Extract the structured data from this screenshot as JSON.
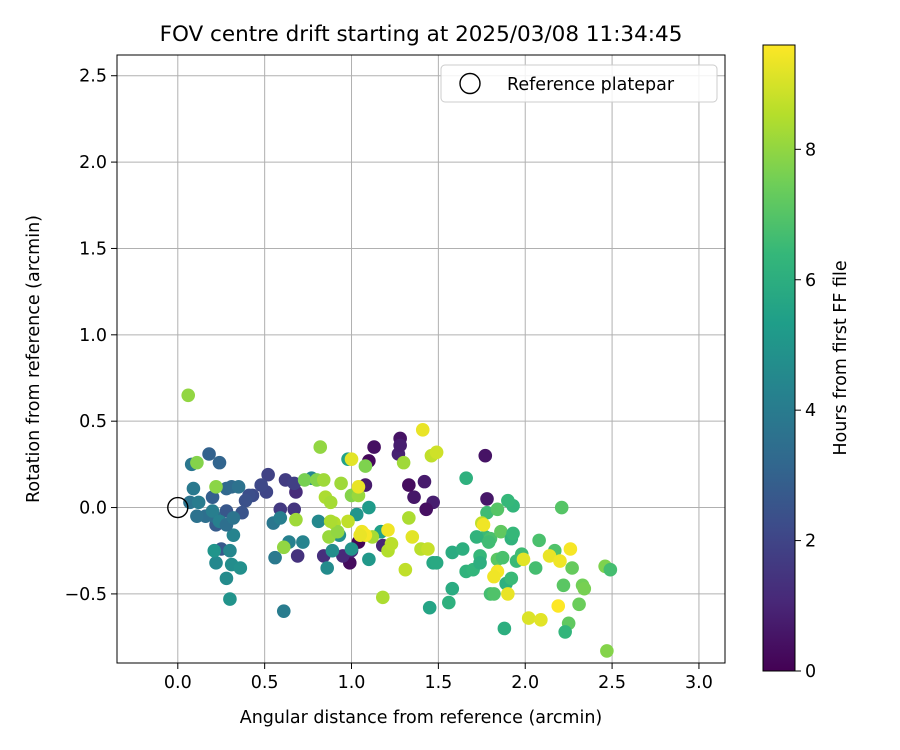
{
  "chart_data": {
    "type": "scatter",
    "title": "FOV centre drift starting at 2025/03/08 11:34:45",
    "xlabel": "Angular distance from reference (arcmin)",
    "ylabel": "Rotation from reference (arcmin)",
    "xlim": [
      -0.35,
      3.15
    ],
    "ylim": [
      -0.9,
      2.62
    ],
    "xticks": [
      0.0,
      0.5,
      1.0,
      1.5,
      2.0,
      2.5,
      3.0
    ],
    "xtick_labels": [
      "0.0",
      "0.5",
      "1.0",
      "1.5",
      "2.0",
      "2.5",
      "3.0"
    ],
    "yticks": [
      -0.5,
      0.0,
      0.5,
      1.0,
      1.5,
      2.0,
      2.5
    ],
    "ytick_labels": [
      "−0.5",
      "0.0",
      "0.5",
      "1.0",
      "1.5",
      "2.0",
      "2.5"
    ],
    "grid": true,
    "legend": {
      "placement": "upper right",
      "label": "Reference platepar"
    },
    "reference_point": [
      0,
      0
    ],
    "colorbar": {
      "label": "Hours from first FF file",
      "colormap": "viridis",
      "range": [
        0,
        9.6
      ],
      "ticks": [
        0,
        2,
        4,
        6,
        8
      ],
      "tick_labels": [
        "0",
        "2",
        "4",
        "6",
        "8"
      ]
    },
    "color_by": "hours",
    "points": [
      [
        1.04,
        -0.2,
        0.1
      ],
      [
        1.1,
        0.27,
        0.2
      ],
      [
        0.99,
        -0.32,
        0.3
      ],
      [
        1.13,
        0.35,
        0.4
      ],
      [
        1.28,
        0.4,
        0.5
      ],
      [
        1.36,
        0.06,
        0.6
      ],
      [
        1.42,
        0.15,
        0.7
      ],
      [
        1.47,
        0.03,
        0.8
      ],
      [
        1.27,
        0.31,
        0.9
      ],
      [
        1.18,
        -0.22,
        1.0
      ],
      [
        1.33,
        0.13,
        0.3
      ],
      [
        1.43,
        -0.01,
        0.4
      ],
      [
        1.77,
        0.3,
        0.5
      ],
      [
        1.78,
        0.05,
        0.6
      ],
      [
        1.08,
        0.13,
        0.7
      ],
      [
        1.28,
        0.36,
        0.8
      ],
      [
        1.0,
        -0.25,
        1.0
      ],
      [
        0.95,
        -0.28,
        1.1
      ],
      [
        0.68,
        0.09,
        1.2
      ],
      [
        0.84,
        -0.28,
        1.3
      ],
      [
        0.69,
        -0.28,
        1.4
      ],
      [
        0.67,
        -0.01,
        1.5
      ],
      [
        0.59,
        -0.01,
        1.6
      ],
      [
        0.62,
        0.16,
        1.7
      ],
      [
        0.67,
        0.14,
        1.8
      ],
      [
        0.52,
        0.19,
        1.9
      ],
      [
        0.51,
        0.09,
        2.0
      ],
      [
        0.48,
        0.13,
        2.1
      ],
      [
        0.43,
        0.07,
        2.2
      ],
      [
        0.41,
        0.07,
        2.3
      ],
      [
        0.39,
        0.04,
        2.4
      ],
      [
        0.37,
        -0.03,
        2.5
      ],
      [
        0.28,
        -0.02,
        2.6
      ],
      [
        0.25,
        -0.24,
        2.7
      ],
      [
        0.22,
        -0.1,
        2.8
      ],
      [
        0.2,
        0.06,
        2.9
      ],
      [
        0.18,
        0.31,
        3.0
      ],
      [
        0.24,
        0.26,
        3.1
      ],
      [
        0.28,
        0.11,
        3.2
      ],
      [
        0.31,
        0.12,
        3.3
      ],
      [
        0.21,
        -0.05,
        3.4
      ],
      [
        0.16,
        -0.05,
        3.5
      ],
      [
        0.11,
        -0.05,
        3.6
      ],
      [
        0.07,
        0.03,
        3.7
      ],
      [
        0.08,
        0.25,
        3.8
      ],
      [
        0.09,
        0.11,
        3.9
      ],
      [
        0.12,
        0.03,
        4.0
      ],
      [
        0.2,
        -0.02,
        4.1
      ],
      [
        0.24,
        -0.08,
        4.2
      ],
      [
        0.32,
        -0.16,
        4.3
      ],
      [
        0.3,
        -0.25,
        4.4
      ],
      [
        0.22,
        -0.32,
        4.5
      ],
      [
        0.28,
        -0.41,
        4.6
      ],
      [
        0.31,
        -0.33,
        4.7
      ],
      [
        0.36,
        -0.35,
        4.8
      ],
      [
        0.3,
        -0.53,
        4.9
      ],
      [
        0.21,
        -0.25,
        5.0
      ],
      [
        0.28,
        -0.1,
        3.5
      ],
      [
        0.35,
        0.12,
        3.6
      ],
      [
        0.32,
        -0.06,
        3.7
      ],
      [
        0.55,
        -0.09,
        3.8
      ],
      [
        0.56,
        -0.29,
        3.9
      ],
      [
        0.61,
        -0.6,
        4.0
      ],
      [
        0.59,
        -0.06,
        4.1
      ],
      [
        0.64,
        -0.2,
        4.2
      ],
      [
        0.72,
        -0.2,
        4.3
      ],
      [
        0.77,
        0.17,
        4.4
      ],
      [
        0.81,
        -0.08,
        4.5
      ],
      [
        0.86,
        -0.35,
        4.6
      ],
      [
        0.89,
        -0.25,
        4.7
      ],
      [
        0.93,
        -0.16,
        4.8
      ],
      [
        1.0,
        -0.24,
        4.9
      ],
      [
        1.03,
        -0.04,
        5.0
      ],
      [
        1.1,
        -0.3,
        5.1
      ],
      [
        1.1,
        0.0,
        5.2
      ],
      [
        1.17,
        -0.14,
        5.3
      ],
      [
        1.17,
        -0.14,
        5.4
      ],
      [
        0.98,
        0.28,
        5.5
      ],
      [
        1.45,
        -0.58,
        5.6
      ],
      [
        1.47,
        -0.32,
        5.7
      ],
      [
        1.49,
        -0.32,
        5.8
      ],
      [
        1.58,
        -0.26,
        5.9
      ],
      [
        1.64,
        -0.24,
        6.0
      ],
      [
        1.66,
        0.17,
        6.1
      ],
      [
        1.66,
        -0.37,
        6.2
      ],
      [
        1.7,
        -0.36,
        6.3
      ],
      [
        1.74,
        -0.28,
        6.4
      ],
      [
        1.77,
        -0.17,
        6.5
      ],
      [
        1.78,
        -0.03,
        6.6
      ],
      [
        1.8,
        -0.5,
        6.7
      ],
      [
        1.8,
        -0.18,
        6.8
      ],
      [
        1.82,
        -0.5,
        6.9
      ],
      [
        1.84,
        -0.01,
        7.0
      ],
      [
        1.84,
        -0.3,
        7.1
      ],
      [
        1.86,
        -0.14,
        7.2
      ],
      [
        1.88,
        -0.7,
        6.0
      ],
      [
        1.89,
        -0.44,
        6.1
      ],
      [
        1.92,
        -0.18,
        6.2
      ],
      [
        1.93,
        0.01,
        6.3
      ],
      [
        1.93,
        -0.15,
        6.4
      ],
      [
        1.95,
        -0.31,
        6.5
      ],
      [
        1.98,
        -0.27,
        6.6
      ],
      [
        2.06,
        -0.35,
        6.7
      ],
      [
        2.08,
        -0.19,
        6.8
      ],
      [
        2.17,
        -0.25,
        6.9
      ],
      [
        2.21,
        0.0,
        7.0
      ],
      [
        2.22,
        -0.45,
        7.1
      ],
      [
        2.25,
        -0.67,
        7.2
      ],
      [
        2.27,
        -0.35,
        7.3
      ],
      [
        2.31,
        -0.56,
        7.4
      ],
      [
        2.33,
        -0.45,
        7.5
      ],
      [
        2.34,
        -0.47,
        7.6
      ],
      [
        2.46,
        -0.34,
        7.7
      ],
      [
        2.47,
        -0.83,
        7.8
      ],
      [
        1.58,
        -0.47,
        5.9
      ],
      [
        1.74,
        -0.32,
        6.0
      ],
      [
        1.56,
        -0.55,
        6.1
      ],
      [
        1.72,
        -0.17,
        6.2
      ],
      [
        2.23,
        -0.72,
        6.3
      ],
      [
        1.9,
        0.04,
        6.4
      ],
      [
        1.92,
        -0.41,
        6.5
      ],
      [
        1.79,
        -0.2,
        6.6
      ],
      [
        2.49,
        -0.36,
        6.7
      ],
      [
        1.87,
        -0.29,
        6.8
      ],
      [
        0.73,
        0.16,
        7.6
      ],
      [
        0.8,
        0.16,
        7.8
      ],
      [
        0.82,
        0.35,
        8.0
      ],
      [
        0.84,
        0.16,
        8.2
      ],
      [
        0.85,
        0.06,
        8.4
      ],
      [
        0.87,
        -0.17,
        8.1
      ],
      [
        0.88,
        0.03,
        8.3
      ],
      [
        0.9,
        -0.09,
        8.5
      ],
      [
        0.92,
        -0.14,
        8.0
      ],
      [
        0.94,
        0.14,
        8.2
      ],
      [
        1.0,
        0.07,
        7.8
      ],
      [
        1.04,
        0.07,
        8.1
      ],
      [
        1.08,
        0.24,
        7.7
      ],
      [
        1.12,
        -0.17,
        8.3
      ],
      [
        1.18,
        -0.52,
        8.4
      ],
      [
        1.21,
        -0.25,
        8.5
      ],
      [
        1.23,
        -0.21,
        8.6
      ],
      [
        1.31,
        -0.36,
        8.7
      ],
      [
        1.3,
        0.26,
        8.2
      ],
      [
        1.33,
        -0.06,
        8.4
      ],
      [
        1.4,
        -0.24,
        8.6
      ],
      [
        1.44,
        -0.24,
        8.8
      ],
      [
        1.46,
        0.3,
        8.7
      ],
      [
        1.49,
        0.32,
        8.9
      ],
      [
        1.75,
        -0.09,
        8.7
      ],
      [
        0.06,
        0.65,
        8.0
      ],
      [
        0.11,
        0.26,
        7.8
      ],
      [
        0.22,
        0.12,
        7.9
      ],
      [
        0.61,
        -0.23,
        8.0
      ],
      [
        0.68,
        -0.07,
        8.2
      ],
      [
        0.88,
        -0.08,
        8.4
      ],
      [
        0.98,
        -0.08,
        8.7
      ],
      [
        1.0,
        0.28,
        9.2
      ],
      [
        1.04,
        0.12,
        9.3
      ],
      [
        1.06,
        -0.14,
        9.4
      ],
      [
        1.08,
        -0.16,
        9.5
      ],
      [
        1.21,
        -0.13,
        9.4
      ],
      [
        1.05,
        -0.16,
        9.3
      ],
      [
        1.35,
        -0.17,
        9.2
      ],
      [
        1.41,
        0.45,
        9.3
      ],
      [
        1.76,
        -0.1,
        9.4
      ],
      [
        1.84,
        -0.37,
        9.5
      ],
      [
        1.82,
        -0.4,
        9.4
      ],
      [
        1.9,
        -0.5,
        9.3
      ],
      [
        1.99,
        -0.3,
        9.2
      ],
      [
        2.02,
        -0.64,
        9.1
      ],
      [
        2.09,
        -0.65,
        9.2
      ],
      [
        2.14,
        -0.28,
        9.3
      ],
      [
        2.2,
        -0.31,
        9.4
      ],
      [
        2.26,
        -0.24,
        9.5
      ],
      [
        2.19,
        -0.57,
        9.6
      ]
    ]
  }
}
